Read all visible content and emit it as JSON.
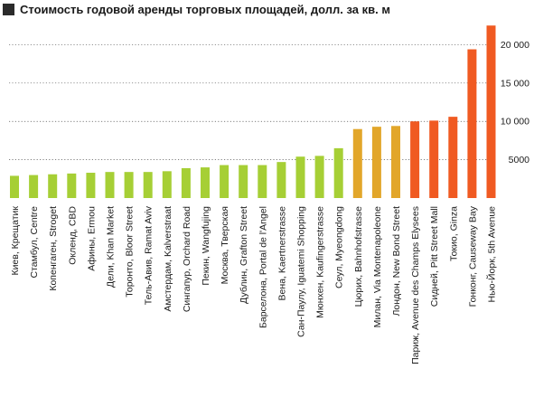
{
  "chart_data": {
    "type": "bar",
    "title": "Стоимость годовой аренды торговых площадей, долл. за кв. м",
    "xlabel": "",
    "ylabel": "",
    "ylim": [
      0,
      23000
    ],
    "yticks": [
      5000,
      10000,
      15000,
      20000
    ],
    "ytick_labels": [
      "5000",
      "10 000",
      "15 000",
      "20 000"
    ],
    "grid": true,
    "legend": "none",
    "categories": [
      "Киев, Крещатик",
      "Стамбул, Centre",
      "Копенгаген, Stroget",
      "Окленд, CBD",
      "Афины, Ermou",
      "Дели, Khan Market",
      "Торонто, Bloor Street",
      "Тель-Авив, Ramat Aviv",
      "Амстердам, Kalverstraat",
      "Сингапур, Orchard Road",
      "Пекин, Wangfujing",
      "Москва, Тверская",
      "Дублин, Grafton Street",
      "Барселона, Portal de l'Angel",
      "Вена, Kaertnerstrasse",
      "Сан-Паулу, Iguatemi Shopping",
      "Мюнхен, Kaufingerstrasse",
      "Сеул, Myeongdong",
      "Цюрих, Bahnhofstrasse",
      "Милан, Via Montenapoleone",
      "Лондон, New Bond Street",
      "Париж, Avenue des Champs Elysees",
      "Сидней, Pitt Street Mall",
      "Токио, Ginza",
      "Гонконг, Causeway Bay",
      "Нью-Йорк, 5th Avenue"
    ],
    "values": [
      2900,
      3000,
      3100,
      3200,
      3300,
      3400,
      3400,
      3400,
      3500,
      3900,
      4000,
      4300,
      4300,
      4300,
      4700,
      5400,
      5500,
      6500,
      9000,
      9300,
      9400,
      10000,
      10100,
      10600,
      19400,
      22500
    ],
    "colors": [
      "#a6cf35",
      "#a6cf35",
      "#a6cf35",
      "#a6cf35",
      "#a6cf35",
      "#a6cf35",
      "#a6cf35",
      "#a6cf35",
      "#a6cf35",
      "#a6cf35",
      "#a6cf35",
      "#a6cf35",
      "#a6cf35",
      "#a6cf35",
      "#a6cf35",
      "#a6cf35",
      "#a6cf35",
      "#a6cf35",
      "#e2a62a",
      "#e2a62a",
      "#e2a62a",
      "#f05a22",
      "#f05a22",
      "#f05a22",
      "#f05a22",
      "#f05a22"
    ]
  }
}
